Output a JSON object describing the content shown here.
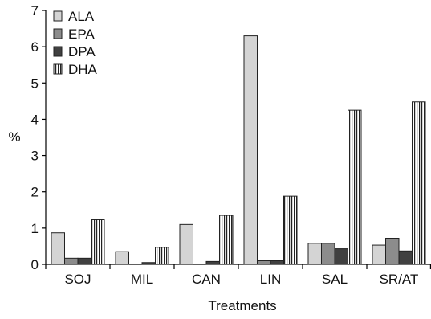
{
  "chart_data": {
    "type": "bar",
    "title": "",
    "xlabel": "Treatments",
    "ylabel": "%",
    "ylim": [
      0,
      7
    ],
    "yticks": [
      0,
      1,
      2,
      3,
      4,
      5,
      6,
      7
    ],
    "grid": false,
    "legend_position": "top-left",
    "categories": [
      "SOJ",
      "MIL",
      "CAN",
      "LIN",
      "SAL",
      "SR/AT"
    ],
    "series": [
      {
        "name": "ALA",
        "pattern": "solid",
        "color": "#d4d4d4",
        "values": [
          0.87,
          0.35,
          1.1,
          6.3,
          0.58,
          0.53
        ]
      },
      {
        "name": "EPA",
        "pattern": "solid",
        "color": "#8c8c8c",
        "values": [
          0.17,
          0.0,
          0.0,
          0.1,
          0.58,
          0.72
        ]
      },
      {
        "name": "DPA",
        "pattern": "solid",
        "color": "#404040",
        "values": [
          0.17,
          0.05,
          0.08,
          0.1,
          0.43,
          0.37
        ]
      },
      {
        "name": "DHA",
        "pattern": "vertical-stripes",
        "color": "#ffffff",
        "values": [
          1.23,
          0.47,
          1.35,
          1.88,
          4.25,
          4.48
        ]
      }
    ]
  }
}
